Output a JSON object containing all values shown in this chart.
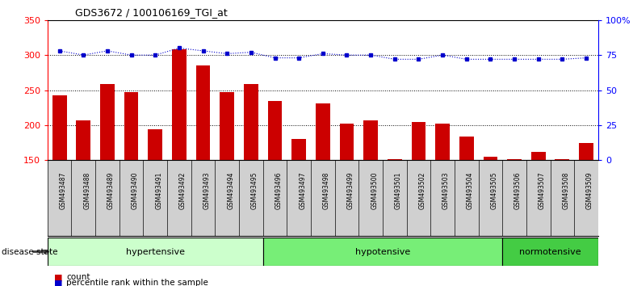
{
  "title": "GDS3672 / 100106169_TGI_at",
  "samples": [
    "GSM493487",
    "GSM493488",
    "GSM493489",
    "GSM493490",
    "GSM493491",
    "GSM493492",
    "GSM493493",
    "GSM493494",
    "GSM493495",
    "GSM493496",
    "GSM493497",
    "GSM493498",
    "GSM493499",
    "GSM493500",
    "GSM493501",
    "GSM493502",
    "GSM493503",
    "GSM493504",
    "GSM493505",
    "GSM493506",
    "GSM493507",
    "GSM493508",
    "GSM493509"
  ],
  "counts": [
    243,
    207,
    259,
    247,
    194,
    308,
    285,
    247,
    259,
    234,
    180,
    231,
    202,
    207,
    151,
    205,
    202,
    184,
    155,
    152,
    162,
    151,
    174
  ],
  "percentile_ranks": [
    78,
    75,
    78,
    75,
    75,
    80,
    78,
    76,
    77,
    73,
    73,
    76,
    75,
    75,
    72,
    72,
    75,
    72,
    72,
    72,
    72,
    72,
    73
  ],
  "groups": [
    {
      "label": "hypertensive",
      "start": 0,
      "end": 9
    },
    {
      "label": "hypotensive",
      "start": 9,
      "end": 19
    },
    {
      "label": "normotensive",
      "start": 19,
      "end": 23
    }
  ],
  "group_colors": [
    "#ccffcc",
    "#77ee77",
    "#44cc44"
  ],
  "ylim_left": [
    150,
    350
  ],
  "ylim_right": [
    0,
    100
  ],
  "yticks_left": [
    150,
    200,
    250,
    300,
    350
  ],
  "yticks_right": [
    0,
    25,
    50,
    75,
    100
  ],
  "bar_color": "#cc0000",
  "dot_color": "#0000cc",
  "plot_bg": "#ffffff",
  "xtick_bg": "#d0d0d0",
  "disease_state_label": "disease state",
  "legend_count": "count",
  "legend_percentile": "percentile rank within the sample",
  "gridline_color": "#000000",
  "gridline_values": [
    200,
    250,
    300
  ]
}
